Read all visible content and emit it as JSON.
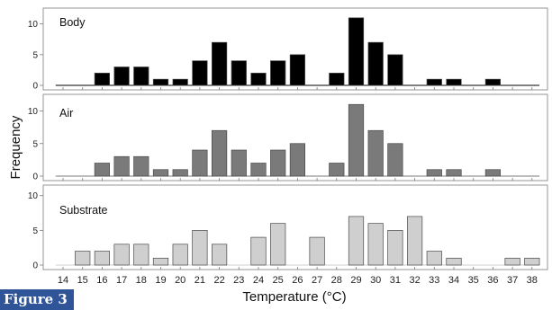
{
  "figure_label": "Figure 3",
  "chart_data": {
    "type": "bar",
    "xlabel": "Temperature (°C)",
    "ylabel": "Frequency",
    "x": [
      14,
      15,
      16,
      17,
      18,
      19,
      20,
      21,
      22,
      23,
      24,
      25,
      26,
      27,
      28,
      29,
      30,
      31,
      32,
      33,
      34,
      35,
      36,
      37,
      38
    ],
    "panels": [
      {
        "name": "Body",
        "color": "#000000",
        "ylim": [
          0,
          12
        ],
        "yticks": [
          0,
          5,
          10
        ],
        "values": [
          0,
          0,
          2,
          3,
          3,
          1,
          1,
          4,
          7,
          4,
          2,
          4,
          5,
          0,
          2,
          11,
          7,
          5,
          0,
          1,
          1,
          0,
          1,
          0,
          0
        ]
      },
      {
        "name": "Air",
        "color": "#7a7a7a",
        "ylim": [
          0,
          12
        ],
        "yticks": [
          0,
          5,
          10
        ],
        "values": [
          0,
          0,
          2,
          3,
          3,
          1,
          1,
          4,
          7,
          4,
          2,
          4,
          5,
          0,
          2,
          11,
          7,
          5,
          0,
          1,
          1,
          0,
          1,
          0,
          0
        ]
      },
      {
        "name": "Substrate",
        "color": "#cfcfcf",
        "ylim": [
          0,
          11
        ],
        "yticks": [
          0,
          5,
          10
        ],
        "values": [
          0,
          2,
          2,
          3,
          3,
          1,
          3,
          5,
          3,
          0,
          4,
          6,
          0,
          4,
          0,
          7,
          6,
          5,
          7,
          2,
          1,
          0,
          0,
          1,
          1
        ]
      }
    ],
    "grid": false,
    "legend": "none"
  }
}
